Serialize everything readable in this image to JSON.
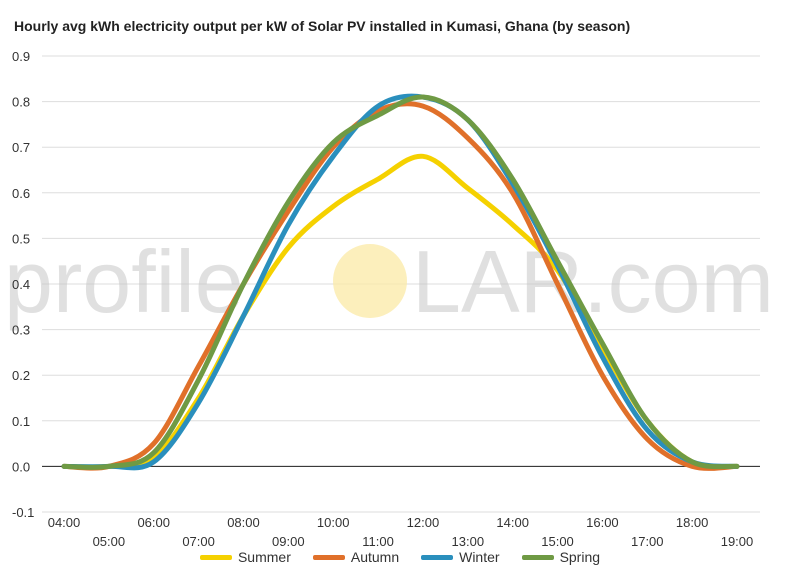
{
  "chart_data": {
    "type": "line",
    "title": "Hourly avg kWh electricity output per kW of Solar PV installed in Kumasi, Ghana (by season)",
    "xlabel": "",
    "ylabel": "",
    "x": [
      "04:00",
      "05:00",
      "06:00",
      "07:00",
      "08:00",
      "09:00",
      "10:00",
      "11:00",
      "12:00",
      "13:00",
      "14:00",
      "15:00",
      "16:00",
      "17:00",
      "18:00",
      "19:00"
    ],
    "ylim": [
      -0.1,
      0.9
    ],
    "yticks": [
      "-0.1",
      "0.0",
      "0.1",
      "0.2",
      "0.3",
      "0.4",
      "0.5",
      "0.6",
      "0.7",
      "0.8",
      "0.9"
    ],
    "grid": true,
    "legend_position": "bottom",
    "series": [
      {
        "name": "Summer",
        "color": "#f5d100",
        "values": [
          0.0,
          0.0,
          0.02,
          0.15,
          0.33,
          0.48,
          0.57,
          0.63,
          0.68,
          0.61,
          0.53,
          0.43,
          0.26,
          0.1,
          0.01,
          0.0
        ]
      },
      {
        "name": "Autumn",
        "color": "#e0702a",
        "values": [
          0.0,
          0.0,
          0.05,
          0.22,
          0.4,
          0.56,
          0.7,
          0.78,
          0.79,
          0.72,
          0.6,
          0.4,
          0.2,
          0.06,
          0.0,
          0.0
        ]
      },
      {
        "name": "Winter",
        "color": "#2a8fbd",
        "values": [
          0.0,
          0.0,
          0.01,
          0.14,
          0.33,
          0.53,
          0.68,
          0.79,
          0.81,
          0.76,
          0.62,
          0.44,
          0.24,
          0.08,
          0.01,
          0.0
        ]
      },
      {
        "name": "Spring",
        "color": "#6f9a44",
        "values": [
          0.0,
          0.0,
          0.03,
          0.19,
          0.4,
          0.58,
          0.71,
          0.77,
          0.81,
          0.76,
          0.63,
          0.45,
          0.27,
          0.1,
          0.01,
          0.0
        ]
      }
    ]
  },
  "watermark": {
    "text_left": "profile",
    "text_right": "LAR.com",
    "sun_color": "#fbe9a6"
  }
}
